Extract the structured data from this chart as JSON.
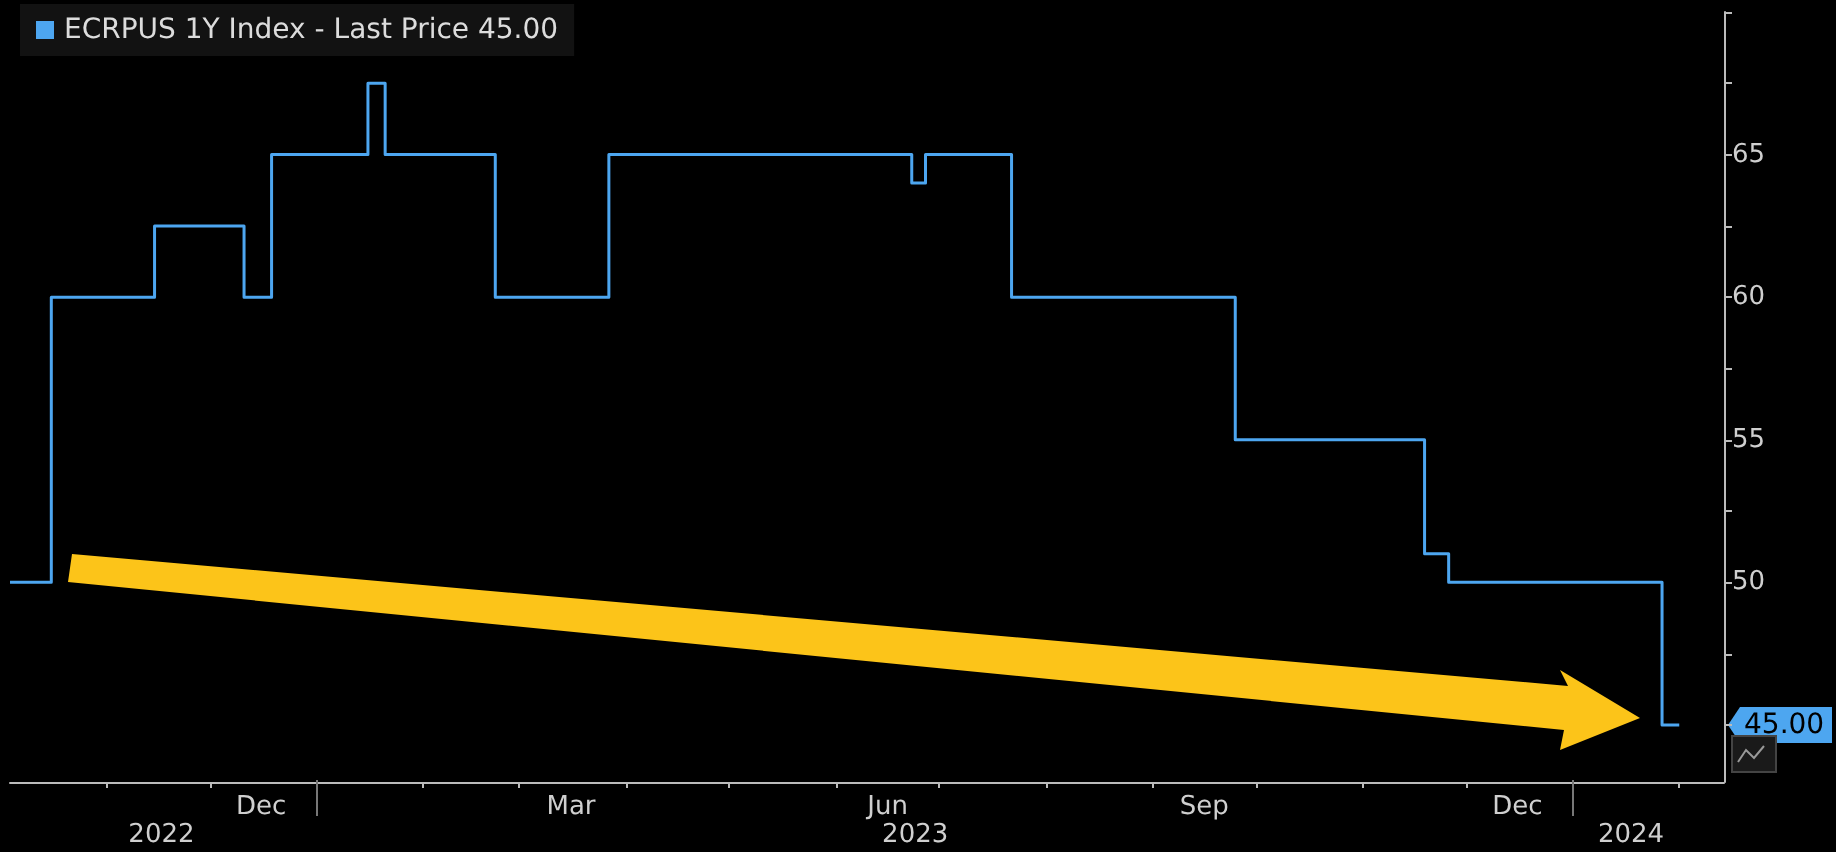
{
  "chart_data": {
    "type": "step",
    "legend": "top left",
    "x": [
      "2022-10-04",
      "2022-10-16",
      "2022-11-15",
      "2022-12-11",
      "2022-12-19",
      "2023-01-16",
      "2023-01-21",
      "2023-02-22",
      "2023-03-27",
      "2023-06-23",
      "2023-06-27",
      "2023-07-22",
      "2023-09-25",
      "2023-11-19",
      "2023-11-26",
      "2024-01-27",
      "2024-02-01"
    ],
    "series": [
      {
        "name": "ECRPUS 1Y Index - Last Price 45.00",
        "color": "#4da6f0",
        "values": [
          50,
          60,
          62.5,
          60,
          65,
          67.5,
          65,
          60,
          65,
          64,
          65,
          60,
          55,
          51,
          50,
          45,
          45
        ]
      }
    ],
    "xlim": [
      "2022-10-04",
      "2024-02-14"
    ],
    "xticks": [
      {
        "value": "2022-11-01",
        "label": null
      },
      {
        "value": "2022-12-01",
        "label": null
      },
      {
        "value": "2022-12-16",
        "label": "Dec"
      },
      {
        "value": "2023-01-01",
        "label": null
      },
      {
        "value": "2023-02-01",
        "label": null
      },
      {
        "value": "2023-03-01",
        "label": null
      },
      {
        "value": "2023-03-16",
        "label": "Mar"
      },
      {
        "value": "2023-04-01",
        "label": null
      },
      {
        "value": "2023-05-01",
        "label": null
      },
      {
        "value": "2023-06-01",
        "label": null
      },
      {
        "value": "2023-06-16",
        "label": "Jun"
      },
      {
        "value": "2023-07-01",
        "label": null
      },
      {
        "value": "2023-08-01",
        "label": null
      },
      {
        "value": "2023-09-01",
        "label": null
      },
      {
        "value": "2023-09-16",
        "label": "Sep"
      },
      {
        "value": "2023-10-01",
        "label": null
      },
      {
        "value": "2023-11-01",
        "label": null
      },
      {
        "value": "2023-12-01",
        "label": null
      },
      {
        "value": "2023-12-16",
        "label": "Dec"
      },
      {
        "value": "2024-01-01",
        "label": null
      },
      {
        "value": "2024-02-01",
        "label": null
      }
    ],
    "x2lim": [
      "2022-10-04",
      "2024-02-14"
    ],
    "x2ticks": [
      {
        "value": "2022-11-17",
        "label": "2022"
      },
      {
        "value": "2023-01-01",
        "label": null
      },
      {
        "value": "2023-06-24",
        "label": "2023"
      },
      {
        "value": "2024-01-01",
        "label": null
      },
      {
        "value": "2024-01-18",
        "label": "2024"
      }
    ],
    "ylim": [
      43,
      70
    ],
    "yticks": [
      {
        "value": 45,
        "label": null
      },
      {
        "value": 47.5,
        "label": null
      },
      50,
      {
        "value": 52.5,
        "label": null
      },
      55,
      {
        "value": 57.5,
        "label": null
      },
      60,
      {
        "value": 62.5,
        "label": null
      },
      65,
      {
        "value": 67.5,
        "label": null
      },
      {
        "value": 70,
        "label": null
      }
    ],
    "annotations": [
      {
        "text": "45.00",
        "x": "2024-02-01",
        "y": 45
      }
    ]
  }
}
